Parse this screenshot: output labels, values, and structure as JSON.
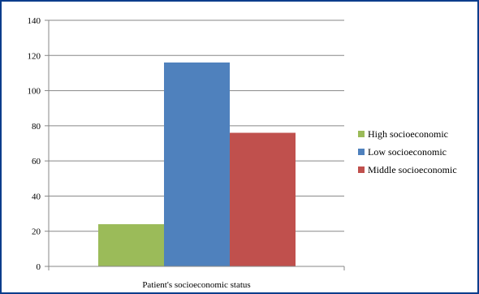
{
  "chart_data": {
    "type": "bar",
    "categories": [
      "Patient's socioeconomic status"
    ],
    "series": [
      {
        "name": "High socioeconomic",
        "values": [
          24
        ],
        "color": "#9bbb59"
      },
      {
        "name": "Low socioeconomic",
        "values": [
          116
        ],
        "color": "#4f81bd"
      },
      {
        "name": "Middle socioeconomic",
        "values": [
          76
        ],
        "color": "#c0504d"
      }
    ],
    "xlabel": "Patient's socioeconomic status",
    "ylabel": "",
    "title": "",
    "ylim": [
      0,
      140
    ],
    "yticks": [
      0,
      20,
      40,
      60,
      80,
      100,
      120,
      140
    ],
    "grid": true,
    "legend_position": "right"
  },
  "colors": {
    "frame_border": "#0a3d8c",
    "gridline": "#878787",
    "axis": "#878787"
  }
}
